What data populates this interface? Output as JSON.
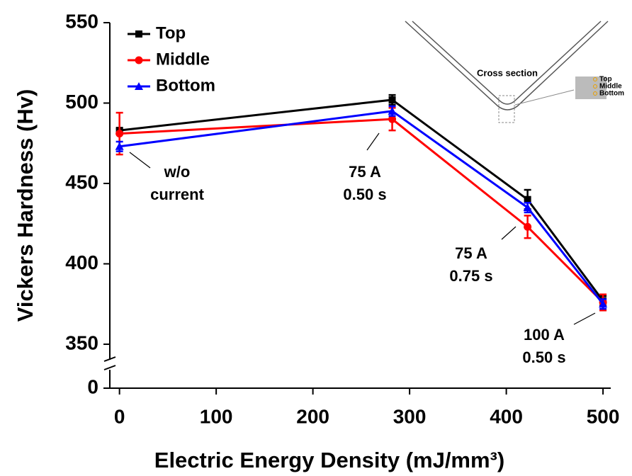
{
  "chart_data": {
    "type": "line",
    "x_label": "Electric Energy Density (mJ/mm³)",
    "y_label": "Vickers Hardness (Hv)",
    "x": [
      0,
      282,
      422,
      500
    ],
    "series": [
      {
        "name": "Top",
        "color": "#000000",
        "marker": "square",
        "values": [
          483,
          502,
          440,
          377
        ],
        "errors": [
          1,
          3,
          6,
          3
        ]
      },
      {
        "name": "Middle",
        "color": "#ff0000",
        "marker": "circle",
        "values": [
          481,
          490,
          423,
          376
        ],
        "errors": [
          13,
          7,
          7,
          5
        ]
      },
      {
        "name": "Bottom",
        "color": "#0000ff",
        "marker": "triangle",
        "values": [
          473,
          495,
          435,
          375
        ],
        "errors": [
          3,
          3,
          3,
          3
        ]
      }
    ],
    "xlim": [
      -10,
      508
    ],
    "xticks": [
      0,
      100,
      200,
      300,
      400,
      500
    ],
    "ylim": [
      0,
      550
    ],
    "ybreak": 335,
    "yticks": [
      0,
      350,
      400,
      450,
      500,
      550
    ],
    "legend": "upper left",
    "annotations": [
      [
        "w/o",
        "current"
      ],
      [
        "75 A",
        "0.50 s"
      ],
      [
        "75 A",
        "0.75 s"
      ],
      [
        "100 A",
        "0.50 s"
      ]
    ],
    "inset": {
      "title": "Cross section",
      "labels": [
        "Top",
        "Middle",
        "Bottom"
      ]
    }
  }
}
